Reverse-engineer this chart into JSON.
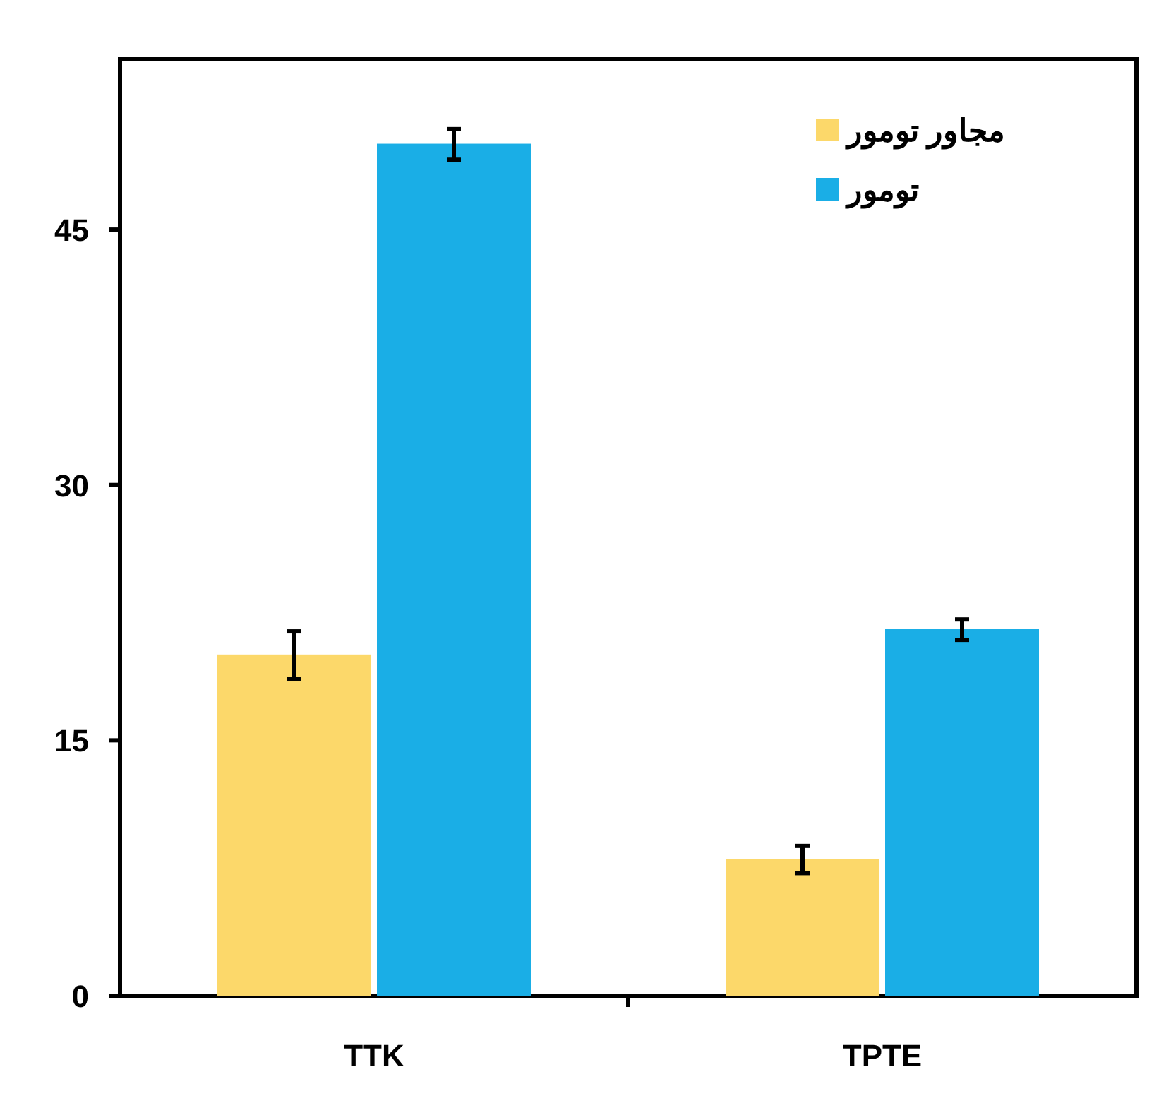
{
  "chart_data": {
    "type": "bar",
    "categories": [
      "TTK",
      "TPTE"
    ],
    "series": [
      {
        "name": "مجاور تومور",
        "color": "#fcd86a",
        "values": [
          20,
          8
        ],
        "errors": [
          1.4,
          0.8
        ]
      },
      {
        "name": "تومور",
        "color": "#1aaee6",
        "values": [
          50,
          21.5
        ],
        "errors": [
          0.9,
          0.6
        ]
      }
    ],
    "ylim": [
      0,
      55
    ],
    "yticks": [
      0,
      15,
      30,
      45
    ],
    "legend": "top right"
  }
}
